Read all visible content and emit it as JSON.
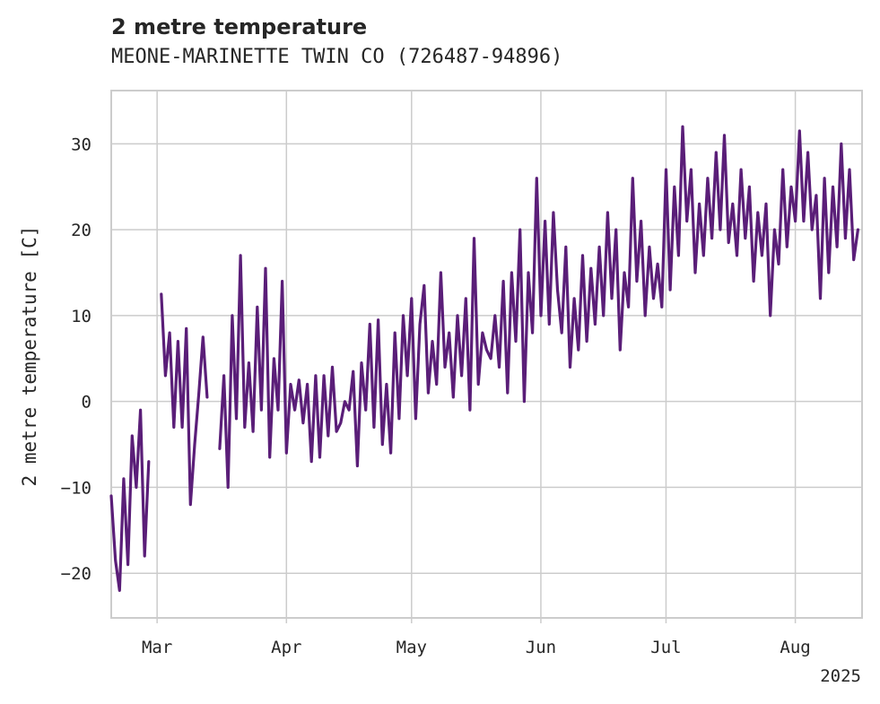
{
  "chart_data": {
    "type": "line",
    "title": "2 metre temperature",
    "subtitle": "MEONE-MARINETTE TWIN CO (726487-94896)",
    "xlabel": "",
    "ylabel": "2 metre temperature [C]",
    "x_ticks": [
      "Mar",
      "Apr",
      "May",
      "Jun",
      "Jul",
      "Aug"
    ],
    "x_offset_label": "2025",
    "y_ticks": [
      -20,
      -10,
      0,
      10,
      20,
      30
    ],
    "ylim": [
      -25.2,
      36.2
    ],
    "xlim": [
      "2025-02-18",
      "2025-08-16"
    ],
    "grid": true,
    "legend": "none",
    "series": [
      {
        "color": "#5a1e78",
        "points": [
          [
            "2025-02-18",
            -11
          ],
          [
            "2025-02-19",
            -18.5
          ],
          [
            "2025-02-20",
            -22
          ],
          [
            "2025-02-21",
            -9
          ],
          [
            "2025-02-22",
            -19
          ],
          [
            "2025-02-23",
            -4
          ],
          [
            "2025-02-24",
            -10
          ],
          [
            "2025-02-25",
            -1
          ],
          [
            "2025-02-26",
            -18
          ],
          [
            "2025-02-27",
            -7
          ],
          [
            "2025-03-02",
            12.5
          ],
          [
            "2025-03-03",
            3
          ],
          [
            "2025-03-04",
            8
          ],
          [
            "2025-03-05",
            -3
          ],
          [
            "2025-03-06",
            7
          ],
          [
            "2025-03-07",
            -3
          ],
          [
            "2025-03-08",
            8.5
          ],
          [
            "2025-03-09",
            -12
          ],
          [
            "2025-03-10",
            -5
          ],
          [
            "2025-03-11",
            1
          ],
          [
            "2025-03-12",
            7.5
          ],
          [
            "2025-03-13",
            0.5
          ],
          [
            "2025-03-16",
            -5.5
          ],
          [
            "2025-03-17",
            3
          ],
          [
            "2025-03-18",
            -10
          ],
          [
            "2025-03-19",
            10
          ],
          [
            "2025-03-20",
            -2
          ],
          [
            "2025-03-21",
            17
          ],
          [
            "2025-03-22",
            -3
          ],
          [
            "2025-03-23",
            4.5
          ],
          [
            "2025-03-24",
            -3.5
          ],
          [
            "2025-03-25",
            11
          ],
          [
            "2025-03-26",
            -1
          ],
          [
            "2025-03-27",
            15.5
          ],
          [
            "2025-03-28",
            -6.5
          ],
          [
            "2025-03-29",
            5
          ],
          [
            "2025-03-30",
            -1
          ],
          [
            "2025-03-31",
            14
          ],
          [
            "2025-04-01",
            -6
          ],
          [
            "2025-04-02",
            2
          ],
          [
            "2025-04-03",
            -1
          ],
          [
            "2025-04-04",
            2.5
          ],
          [
            "2025-04-05",
            -2.5
          ],
          [
            "2025-04-06",
            2
          ],
          [
            "2025-04-07",
            -7
          ],
          [
            "2025-04-08",
            3
          ],
          [
            "2025-04-09",
            -6.5
          ],
          [
            "2025-04-10",
            3
          ],
          [
            "2025-04-11",
            -4
          ],
          [
            "2025-04-12",
            4
          ],
          [
            "2025-04-13",
            -3.5
          ],
          [
            "2025-04-14",
            -2.5
          ],
          [
            "2025-04-15",
            0
          ],
          [
            "2025-04-16",
            -1
          ],
          [
            "2025-04-17",
            3.5
          ],
          [
            "2025-04-18",
            -7.5
          ],
          [
            "2025-04-19",
            4.5
          ],
          [
            "2025-04-20",
            -1
          ],
          [
            "2025-04-21",
            9
          ],
          [
            "2025-04-22",
            -3
          ],
          [
            "2025-04-23",
            9.5
          ],
          [
            "2025-04-24",
            -5
          ],
          [
            "2025-04-25",
            2
          ],
          [
            "2025-04-26",
            -6
          ],
          [
            "2025-04-27",
            8
          ],
          [
            "2025-04-28",
            -2
          ],
          [
            "2025-04-29",
            10
          ],
          [
            "2025-04-30",
            3
          ],
          [
            "2025-05-01",
            12
          ],
          [
            "2025-05-02",
            -2
          ],
          [
            "2025-05-03",
            9
          ],
          [
            "2025-05-04",
            13.5
          ],
          [
            "2025-05-05",
            1
          ],
          [
            "2025-05-06",
            7
          ],
          [
            "2025-05-07",
            2
          ],
          [
            "2025-05-08",
            15
          ],
          [
            "2025-05-09",
            4
          ],
          [
            "2025-05-10",
            8
          ],
          [
            "2025-05-11",
            0.5
          ],
          [
            "2025-05-12",
            10
          ],
          [
            "2025-05-13",
            3
          ],
          [
            "2025-05-14",
            12
          ],
          [
            "2025-05-15",
            -1
          ],
          [
            "2025-05-16",
            19
          ],
          [
            "2025-05-17",
            2
          ],
          [
            "2025-05-18",
            8
          ],
          [
            "2025-05-19",
            6
          ],
          [
            "2025-05-20",
            5
          ],
          [
            "2025-05-21",
            10
          ],
          [
            "2025-05-22",
            4
          ],
          [
            "2025-05-23",
            14
          ],
          [
            "2025-05-24",
            1
          ],
          [
            "2025-05-25",
            15
          ],
          [
            "2025-05-26",
            7
          ],
          [
            "2025-05-27",
            20
          ],
          [
            "2025-05-28",
            0
          ],
          [
            "2025-05-29",
            15
          ],
          [
            "2025-05-30",
            8
          ],
          [
            "2025-05-31",
            26
          ],
          [
            "2025-06-01",
            10
          ],
          [
            "2025-06-02",
            21
          ],
          [
            "2025-06-03",
            9
          ],
          [
            "2025-06-04",
            22
          ],
          [
            "2025-06-05",
            13
          ],
          [
            "2025-06-06",
            8
          ],
          [
            "2025-06-07",
            18
          ],
          [
            "2025-06-08",
            4
          ],
          [
            "2025-06-09",
            12
          ],
          [
            "2025-06-10",
            6
          ],
          [
            "2025-06-11",
            17
          ],
          [
            "2025-06-12",
            7
          ],
          [
            "2025-06-13",
            15.5
          ],
          [
            "2025-06-14",
            9
          ],
          [
            "2025-06-15",
            18
          ],
          [
            "2025-06-16",
            10
          ],
          [
            "2025-06-17",
            22
          ],
          [
            "2025-06-18",
            12
          ],
          [
            "2025-06-19",
            20
          ],
          [
            "2025-06-20",
            6
          ],
          [
            "2025-06-21",
            15
          ],
          [
            "2025-06-22",
            11
          ],
          [
            "2025-06-23",
            26
          ],
          [
            "2025-06-24",
            14
          ],
          [
            "2025-06-25",
            21
          ],
          [
            "2025-06-26",
            10
          ],
          [
            "2025-06-27",
            18
          ],
          [
            "2025-06-28",
            12
          ],
          [
            "2025-06-29",
            16
          ],
          [
            "2025-06-30",
            11
          ],
          [
            "2025-07-01",
            27
          ],
          [
            "2025-07-02",
            13
          ],
          [
            "2025-07-03",
            25
          ],
          [
            "2025-07-04",
            17
          ],
          [
            "2025-07-05",
            32
          ],
          [
            "2025-07-06",
            21
          ],
          [
            "2025-07-07",
            27
          ],
          [
            "2025-07-08",
            15
          ],
          [
            "2025-07-09",
            23
          ],
          [
            "2025-07-10",
            17
          ],
          [
            "2025-07-11",
            26
          ],
          [
            "2025-07-12",
            19
          ],
          [
            "2025-07-13",
            29
          ],
          [
            "2025-07-14",
            20
          ],
          [
            "2025-07-15",
            31
          ],
          [
            "2025-07-16",
            18.5
          ],
          [
            "2025-07-17",
            23
          ],
          [
            "2025-07-18",
            17
          ],
          [
            "2025-07-19",
            27
          ],
          [
            "2025-07-20",
            19
          ],
          [
            "2025-07-21",
            25
          ],
          [
            "2025-07-22",
            14
          ],
          [
            "2025-07-23",
            22
          ],
          [
            "2025-07-24",
            17
          ],
          [
            "2025-07-25",
            23
          ],
          [
            "2025-07-26",
            10
          ],
          [
            "2025-07-27",
            20
          ],
          [
            "2025-07-28",
            16
          ],
          [
            "2025-07-29",
            27
          ],
          [
            "2025-07-30",
            18
          ],
          [
            "2025-07-31",
            25
          ],
          [
            "2025-08-01",
            21
          ],
          [
            "2025-08-02",
            31.5
          ],
          [
            "2025-08-03",
            21
          ],
          [
            "2025-08-04",
            29
          ],
          [
            "2025-08-05",
            20
          ],
          [
            "2025-08-06",
            24
          ],
          [
            "2025-08-07",
            12
          ],
          [
            "2025-08-08",
            26
          ],
          [
            "2025-08-09",
            15
          ],
          [
            "2025-08-10",
            25
          ],
          [
            "2025-08-11",
            18
          ],
          [
            "2025-08-12",
            30
          ],
          [
            "2025-08-13",
            19
          ],
          [
            "2025-08-14",
            27
          ],
          [
            "2025-08-15",
            16.5
          ],
          [
            "2025-08-16",
            20
          ]
        ]
      }
    ]
  }
}
